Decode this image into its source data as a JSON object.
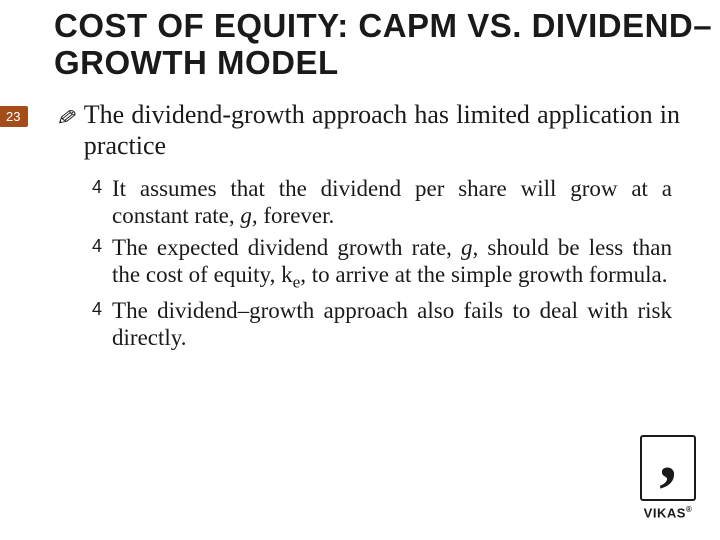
{
  "slide": {
    "title": "COST OF EQUITY: CAPM VS. DIVIDEND–GROWTH MODEL",
    "title_fontsize": 33,
    "title_color": "#1a1a1a",
    "page_number": "23",
    "page_number_bg": "#a54d1a",
    "page_number_top": 106,
    "background_color": "#ffffff"
  },
  "content": {
    "main_point": {
      "bullet": "✎",
      "text_parts": [
        {
          "t": "The dividend-growth approach has limited application in practice",
          "style": ""
        }
      ],
      "fontsize": 26,
      "line_height": 1.18
    },
    "sub_points": [
      {
        "bullet": "4",
        "text_parts": [
          {
            "t": "It assumes that the dividend per share will grow at a constant rate, ",
            "style": ""
          },
          {
            "t": "g,",
            "style": "italic"
          },
          {
            "t": " forever.",
            "style": ""
          }
        ]
      },
      {
        "bullet": "4",
        "text_parts": [
          {
            "t": "The expected dividend growth rate, ",
            "style": ""
          },
          {
            "t": "g,",
            "style": "italic"
          },
          {
            "t": " should be less than the cost of equity, k",
            "style": ""
          },
          {
            "t": "e",
            "style": "subscript"
          },
          {
            "t": ", to arrive at the simple growth formula.",
            "style": ""
          }
        ]
      },
      {
        "bullet": "4",
        "text_parts": [
          {
            "t": "The dividend–growth approach also fails to deal with risk directly.",
            "style": ""
          }
        ]
      }
    ],
    "sub_fontsize": 23,
    "sub_line_height": 1.18,
    "sub_bullet_fontsize": 18
  },
  "logo": {
    "text": "VIKAS",
    "reg": "®"
  }
}
